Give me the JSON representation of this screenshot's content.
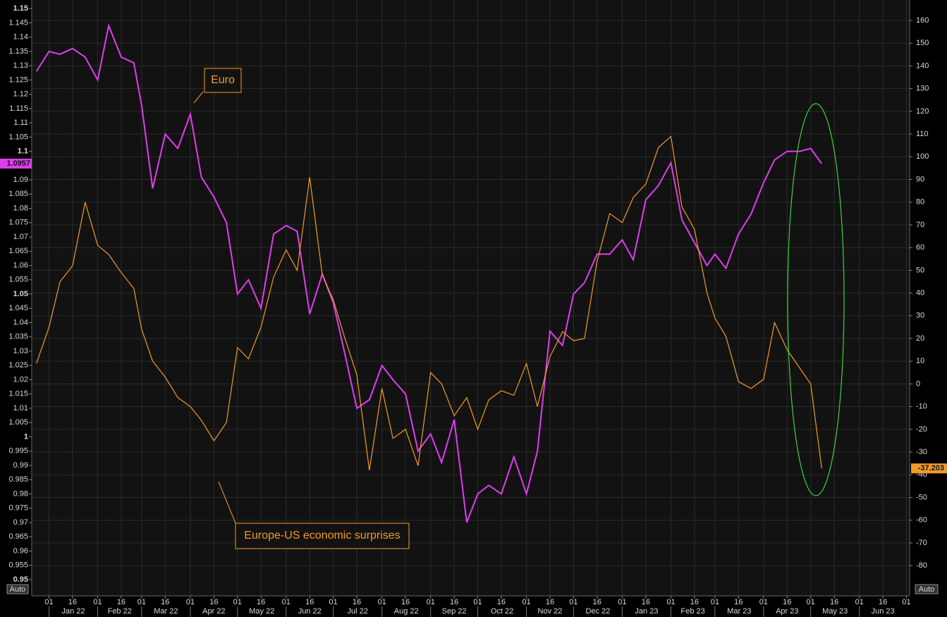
{
  "chart_data": {
    "type": "line",
    "x": [
      "2021-12-24",
      "2022-01-01",
      "2022-01-08",
      "2022-01-16",
      "2022-01-24",
      "2022-02-01",
      "2022-02-08",
      "2022-02-16",
      "2022-02-24",
      "2022-03-01",
      "2022-03-08",
      "2022-03-16",
      "2022-03-24",
      "2022-04-01",
      "2022-04-08",
      "2022-04-16",
      "2022-04-24",
      "2022-05-01",
      "2022-05-08",
      "2022-05-16",
      "2022-05-24",
      "2022-06-01",
      "2022-06-08",
      "2022-06-16",
      "2022-06-24",
      "2022-07-01",
      "2022-07-08",
      "2022-07-16",
      "2022-07-24",
      "2022-08-01",
      "2022-08-08",
      "2022-08-16",
      "2022-08-24",
      "2022-09-01",
      "2022-09-08",
      "2022-09-16",
      "2022-09-24",
      "2022-10-01",
      "2022-10-08",
      "2022-10-16",
      "2022-10-24",
      "2022-11-01",
      "2022-11-08",
      "2022-11-16",
      "2022-11-24",
      "2022-12-01",
      "2022-12-08",
      "2022-12-16",
      "2022-12-24",
      "2023-01-01",
      "2023-01-08",
      "2023-01-16",
      "2023-01-24",
      "2023-02-01",
      "2023-02-08",
      "2023-02-16",
      "2023-02-24",
      "2023-03-01",
      "2023-03-08",
      "2023-03-16",
      "2023-03-24",
      "2023-04-01",
      "2023-04-08",
      "2023-04-16",
      "2023-04-24",
      "2023-05-01",
      "2023-05-08"
    ],
    "series": [
      {
        "name": "Euro",
        "color": "#e03cf0",
        "axis": "y",
        "last_value": 1.0957,
        "values": [
          1.128,
          1.135,
          1.134,
          1.136,
          1.133,
          1.125,
          1.144,
          1.133,
          1.131,
          1.116,
          1.087,
          1.106,
          1.101,
          1.113,
          1.091,
          1.084,
          1.075,
          1.05,
          1.055,
          1.045,
          1.071,
          1.074,
          1.072,
          1.043,
          1.057,
          1.047,
          1.03,
          1.01,
          1.013,
          1.025,
          1.02,
          1.015,
          0.995,
          1.001,
          0.991,
          1.006,
          0.97,
          0.98,
          0.983,
          0.98,
          0.993,
          0.98,
          0.995,
          1.037,
          1.032,
          1.05,
          1.054,
          1.064,
          1.064,
          1.069,
          1.062,
          1.083,
          1.088,
          1.096,
          1.076,
          1.068,
          1.06,
          1.064,
          1.059,
          1.071,
          1.078,
          1.089,
          1.097,
          1.1,
          1.1,
          1.101,
          1.0957
        ]
      },
      {
        "name": "Europe-US economic surprises",
        "color": "#f39a26",
        "axis": "y2",
        "last_value": -37.203,
        "values": [
          9,
          25,
          45,
          52,
          80,
          61,
          57,
          49,
          42,
          24,
          10,
          3,
          -6,
          -10,
          -16,
          -25,
          -17,
          16,
          11,
          25,
          47,
          59,
          50,
          91,
          48,
          37,
          21,
          4,
          -38,
          -2,
          -24,
          -20,
          -36,
          5,
          0,
          -14,
          -6,
          -20,
          -7,
          -3,
          -5,
          9,
          -10,
          12,
          23,
          19,
          20,
          54,
          75,
          71,
          82,
          88,
          104,
          109,
          78,
          68,
          40,
          29,
          21,
          1,
          -2,
          2,
          27,
          15,
          7,
          0,
          -37.203
        ]
      }
    ],
    "xlim": [
      "2021-12-21",
      "2023-07-03"
    ],
    "xticks": [
      {
        "value": "2022-01-01",
        "label": "01"
      },
      {
        "value": "2022-01-16",
        "label": "16"
      },
      {
        "value": "2022-02-01",
        "label": "01"
      },
      {
        "value": "2022-02-16",
        "label": "16"
      },
      {
        "value": "2022-03-01",
        "label": "01"
      },
      {
        "value": "2022-03-16",
        "label": "16"
      },
      {
        "value": "2022-04-01",
        "label": "01"
      },
      {
        "value": "2022-04-16",
        "label": "16"
      },
      {
        "value": "2022-05-01",
        "label": "01"
      },
      {
        "value": "2022-05-16",
        "label": "16"
      },
      {
        "value": "2022-06-01",
        "label": "01"
      },
      {
        "value": "2022-06-16",
        "label": "16"
      },
      {
        "value": "2022-07-01",
        "label": "01"
      },
      {
        "value": "2022-07-16",
        "label": "16"
      },
      {
        "value": "2022-08-01",
        "label": "01"
      },
      {
        "value": "2022-08-16",
        "label": "16"
      },
      {
        "value": "2022-09-01",
        "label": "01"
      },
      {
        "value": "2022-09-16",
        "label": "16"
      },
      {
        "value": "2022-10-01",
        "label": "01"
      },
      {
        "value": "2022-10-16",
        "label": "16"
      },
      {
        "value": "2022-11-01",
        "label": "01"
      },
      {
        "value": "2022-11-16",
        "label": "16"
      },
      {
        "value": "2022-12-01",
        "label": "01"
      },
      {
        "value": "2022-12-16",
        "label": "16"
      },
      {
        "value": "2023-01-01",
        "label": "01"
      },
      {
        "value": "2023-01-16",
        "label": "16"
      },
      {
        "value": "2023-02-01",
        "label": "01"
      },
      {
        "value": "2023-02-16",
        "label": "16"
      },
      {
        "value": "2023-03-01",
        "label": "01"
      },
      {
        "value": "2023-03-16",
        "label": "16"
      },
      {
        "value": "2023-04-01",
        "label": "01"
      },
      {
        "value": "2023-04-16",
        "label": "16"
      },
      {
        "value": "2023-05-01",
        "label": "01"
      },
      {
        "value": "2023-05-16",
        "label": "16"
      },
      {
        "value": "2023-06-01",
        "label": "01"
      },
      {
        "value": "2023-06-16",
        "label": "16"
      },
      {
        "value": "2023-07-01",
        "label": "01"
      }
    ],
    "month_labels": [
      {
        "value": "2022-01",
        "label": "Jan 22"
      },
      {
        "value": "2022-02",
        "label": "Feb 22"
      },
      {
        "value": "2022-03",
        "label": "Mar 22"
      },
      {
        "value": "2022-04",
        "label": "Apr 22"
      },
      {
        "value": "2022-05",
        "label": "May 22"
      },
      {
        "value": "2022-06",
        "label": "Jun 22"
      },
      {
        "value": "2022-07",
        "label": "Jul 22"
      },
      {
        "value": "2022-08",
        "label": "Aug 22"
      },
      {
        "value": "2022-09",
        "label": "Sep 22"
      },
      {
        "value": "2022-10",
        "label": "Oct 22"
      },
      {
        "value": "2022-11",
        "label": "Nov 22"
      },
      {
        "value": "2022-12",
        "label": "Dec 22"
      },
      {
        "value": "2023-01",
        "label": "Jan 23"
      },
      {
        "value": "2023-02",
        "label": "Feb 23"
      },
      {
        "value": "2023-03",
        "label": "Mar 23"
      },
      {
        "value": "2023-04",
        "label": "Apr 23"
      },
      {
        "value": "2023-05",
        "label": "May 23"
      },
      {
        "value": "2023-06",
        "label": "Jun 23"
      }
    ],
    "ylim": [
      0.9443,
      1.153
    ],
    "yticks": [
      0.95,
      0.955,
      0.96,
      0.965,
      0.97,
      0.975,
      0.98,
      0.985,
      0.99,
      0.995,
      1,
      1.005,
      1.01,
      1.015,
      1.02,
      1.025,
      1.03,
      1.035,
      1.04,
      1.045,
      1.05,
      1.055,
      1.06,
      1.065,
      1.07,
      1.075,
      1.08,
      1.085,
      1.09,
      1.095,
      1.1,
      1.105,
      1.11,
      1.115,
      1.12,
      1.125,
      1.13,
      1.135,
      1.14,
      1.145,
      1.15
    ],
    "y2lim": [
      -93.3,
      169
    ],
    "y2ticks": [
      -80,
      -70,
      -60,
      -50,
      -40,
      -30,
      -20,
      -10,
      0,
      10,
      20,
      30,
      40,
      50,
      60,
      70,
      80,
      90,
      100,
      110,
      120,
      130,
      140,
      150,
      160
    ],
    "grid": true,
    "y_axis_mode": "Auto",
    "y2_axis_mode": "Auto"
  }
}
